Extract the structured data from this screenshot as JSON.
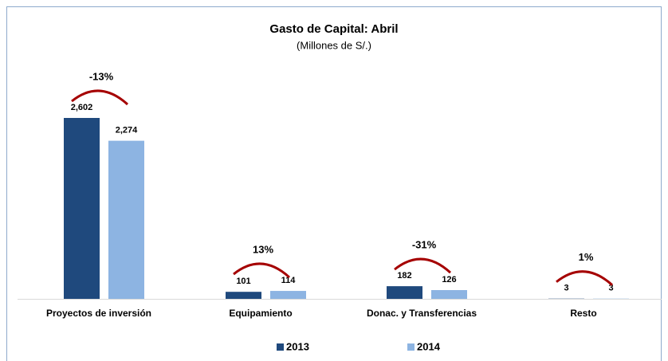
{
  "chart_data": {
    "type": "bar",
    "title": "Gasto de Capital: Abril",
    "subtitle": "(Millones de S/.)",
    "categories": [
      "Proyectos de inversión",
      "Equipamiento",
      "Donac. y Transferencias",
      "Resto"
    ],
    "series": [
      {
        "name": "2013",
        "color": "#1f497d",
        "values": [
          2602,
          101,
          182,
          3
        ],
        "value_labels": [
          "2,602",
          "101",
          "182",
          "3"
        ]
      },
      {
        "name": "2014",
        "color": "#8db4e2",
        "values": [
          2274,
          114,
          126,
          3
        ],
        "value_labels": [
          "2,274",
          "114",
          "126",
          "3"
        ]
      }
    ],
    "annotations": [
      "-13%",
      "13%",
      "-31%",
      "1%"
    ],
    "legend": "bottom"
  }
}
